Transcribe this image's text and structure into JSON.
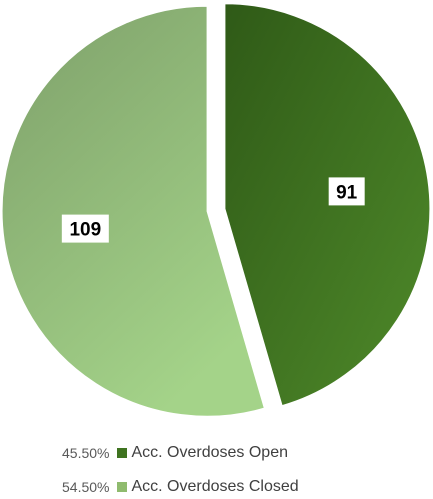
{
  "chart_data": {
    "type": "pie",
    "slices": [
      {
        "label": "Acc. Overdoses Open",
        "value": 91,
        "percent_label": "45.50%",
        "color": "#3f7320"
      },
      {
        "label": "Acc. Overdoses Closed",
        "value": 109,
        "percent_label": "54.50%",
        "color": "#8fbb6e"
      }
    ],
    "data_labels": [
      "91",
      "109"
    ],
    "legend_position": "bottom",
    "start_angle": "12 o'clock",
    "direction": "clockwise"
  }
}
